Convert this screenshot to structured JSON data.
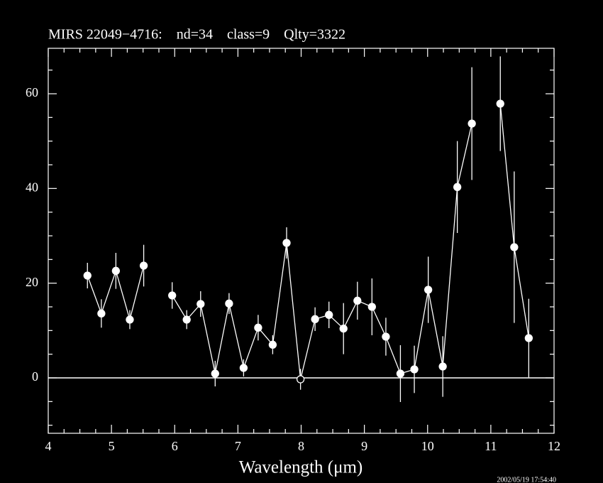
{
  "chart_data": {
    "type": "errorbar_line",
    "title": "MIRS 22049−4716:    nd=34    class=9    Qlty=3322",
    "xlabel": "Wavelength (μm)",
    "timestamp": "2002/05/19 17:54:40",
    "background": "#000000",
    "color": "#ffffff",
    "xlim": [
      4,
      12
    ],
    "ylim": [
      -11.7,
      69.6
    ],
    "xticks": [
      4,
      5,
      6,
      7,
      8,
      9,
      10,
      11,
      12
    ],
    "yticks": [
      0,
      20,
      40,
      60
    ],
    "xminorticks": [
      4.25,
      4.5,
      4.75,
      5.25,
      5.5,
      5.75,
      6.25,
      6.5,
      6.75,
      7.25,
      7.5,
      7.75,
      8.25,
      8.5,
      8.75,
      9.25,
      9.5,
      9.75,
      10.25,
      10.5,
      10.75,
      11.25,
      11.5,
      11.75
    ],
    "yminorticks": [
      -10,
      -5,
      5,
      10,
      15,
      25,
      30,
      35,
      45,
      50,
      55,
      65
    ],
    "hline": 0,
    "x": [
      4.62,
      4.84,
      5.07,
      5.29,
      5.51,
      null,
      5.96,
      6.19,
      6.41,
      6.64,
      6.86,
      7.09,
      7.32,
      7.55,
      7.77,
      7.99,
      8.22,
      8.44,
      8.67,
      8.89,
      9.12,
      9.34,
      9.57,
      9.79,
      10.01,
      10.24,
      10.47,
      10.7,
      null,
      11.15,
      11.37,
      11.6
    ],
    "values": [
      21.6,
      13.6,
      22.6,
      12.3,
      23.7,
      null,
      17.4,
      12.3,
      15.6,
      0.9,
      15.7,
      2.1,
      10.6,
      7.0,
      28.5,
      -0.3,
      12.4,
      13.3,
      10.4,
      16.3,
      15.0,
      8.7,
      0.9,
      1.8,
      18.6,
      2.4,
      40.3,
      53.7,
      null,
      57.9,
      27.6,
      8.4
    ],
    "errors": [
      2.7,
      3,
      3.8,
      2,
      4.4,
      null,
      2.8,
      2,
      2.7,
      2.7,
      2.2,
      1.8,
      2.7,
      2,
      3.3,
      2.2,
      2.5,
      2.8,
      5.4,
      4,
      6,
      4,
      6,
      5,
      7,
      6.4,
      9.7,
      11.9,
      null,
      10,
      16,
      8.3
    ],
    "markers": [
      "filled",
      "filled",
      "filled",
      "filled",
      "filled",
      null,
      "filled",
      "filled",
      "filled",
      "filled",
      "filled",
      "filled",
      "filled",
      "filled",
      "filled",
      "open",
      "filled",
      "filled",
      "filled",
      "filled",
      "filled",
      "filled",
      "filled",
      "filled",
      "filled",
      "filled",
      "filled",
      "filled",
      null,
      "filled",
      "filled",
      "filled"
    ]
  }
}
